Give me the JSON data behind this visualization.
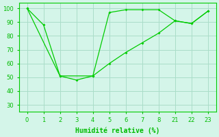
{
  "series1_x_idx": [
    0,
    1,
    2,
    3,
    4,
    5,
    6,
    7,
    8,
    9,
    10,
    11
  ],
  "series1_y": [
    100,
    88,
    51,
    48,
    51,
    97,
    99,
    99,
    99,
    91,
    89,
    98
  ],
  "series2_x_idx": [
    0,
    2,
    4,
    5,
    6,
    7,
    8,
    9,
    10,
    11
  ],
  "series2_y": [
    100,
    51,
    51,
    60,
    68,
    75,
    82,
    91,
    89,
    98
  ],
  "xtick_labels": [
    "0",
    "1",
    "2",
    "3",
    "4",
    "5",
    "6",
    "7",
    "8",
    "21",
    "22",
    "23"
  ],
  "line_color": "#00cc00",
  "bg_color": "#d4f5e9",
  "grid_color": "#aaddc8",
  "xlabel": "Humidité relative (%)",
  "xlabel_color": "#00bb00",
  "tick_color": "#00bb00",
  "ylim": [
    25,
    104
  ],
  "yticks": [
    30,
    40,
    50,
    60,
    70,
    80,
    90,
    100
  ]
}
